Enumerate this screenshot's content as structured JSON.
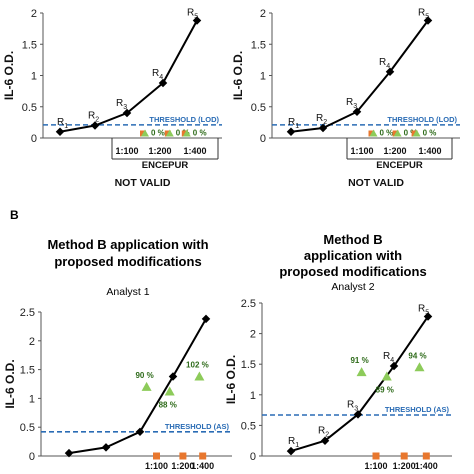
{
  "section_label_b": "B",
  "chart_data": [
    {
      "type": "line",
      "panel": "A-left",
      "ylabel": "IL-6 O.D.",
      "ylim": [
        0,
        2
      ],
      "yticks": [
        "0",
        "0.5",
        "1",
        "1.5",
        "2"
      ],
      "x": [
        1,
        2,
        3,
        4,
        5
      ],
      "values": [
        0.1,
        0.2,
        0.4,
        0.88,
        1.88
      ],
      "point_labels": [
        {
          "base": "R",
          "sub": "1"
        },
        {
          "base": "R",
          "sub": "2"
        },
        {
          "base": "R",
          "sub": "3"
        },
        {
          "base": "R",
          "sub": "4"
        },
        {
          "base": "R",
          "sub": "5"
        }
      ],
      "threshold": {
        "value": 0.21,
        "label": "THRESHOLD (LOD)"
      },
      "samples": [
        {
          "x": 3.5,
          "y": 0.04,
          "label": "0 %",
          "marker": "square-triangle"
        },
        {
          "x": 4.2,
          "y": 0.04,
          "label": "0 %",
          "marker": "square-triangle"
        },
        {
          "x": 4.7,
          "y": 0.04,
          "label": "0 %",
          "marker": "square-triangle"
        }
      ],
      "sample_labels": [
        "1:100",
        "1:200",
        "1:400"
      ],
      "group_label": "ENCEPUR",
      "footer": "NOT VALID"
    },
    {
      "type": "line",
      "panel": "A-right",
      "ylabel": "IL-6 O.D.",
      "ylim": [
        0,
        2
      ],
      "yticks": [
        "0",
        "0.5",
        "1",
        "1.5",
        "2"
      ],
      "x": [
        1,
        2,
        3,
        4,
        5
      ],
      "values": [
        0.1,
        0.16,
        0.42,
        1.06,
        1.88
      ],
      "point_labels": [
        {
          "base": "R",
          "sub": "1"
        },
        {
          "base": "R",
          "sub": "2"
        },
        {
          "base": "R",
          "sub": "3"
        },
        {
          "base": "R",
          "sub": "4"
        },
        {
          "base": "R",
          "sub": "5"
        }
      ],
      "threshold": {
        "value": 0.21,
        "label": "THRESHOLD (LOD)"
      },
      "samples": [
        {
          "x": 3.5,
          "y": 0.04,
          "label": "0 %",
          "marker": "square-triangle"
        },
        {
          "x": 4.2,
          "y": 0.04,
          "label": "0 %",
          "marker": "square-triangle"
        },
        {
          "x": 4.7,
          "y": 0.04,
          "label": "0 %",
          "marker": "square-triangle"
        }
      ],
      "sample_labels": [
        "1:100",
        "1:200",
        "1:400"
      ],
      "group_label": "ENCEPUR",
      "footer": "NOT VALID"
    },
    {
      "type": "line",
      "panel": "B-left",
      "title": "Method B application with proposed modifications",
      "subtitle": "Analyst 1",
      "ylabel": "IL-6 O.D.",
      "ylim": [
        0,
        2.5
      ],
      "yticks": [
        "0",
        "0.5",
        "1",
        "1.5",
        "2",
        "2.5"
      ],
      "x": [
        1,
        2,
        3,
        4,
        5
      ],
      "values": [
        0.05,
        0.15,
        0.42,
        1.38,
        2.38
      ],
      "point_labels": [],
      "threshold": {
        "value": 0.42,
        "label": "THRESHOLD (AS)"
      },
      "samples": [
        {
          "x": 3.2,
          "y": 1.2,
          "label": "90 %",
          "marker": "triangle"
        },
        {
          "x": 3.9,
          "y": 1.12,
          "label": "88 %",
          "marker": "triangle"
        },
        {
          "x": 4.8,
          "y": 1.38,
          "label": "102 %",
          "marker": "triangle"
        }
      ],
      "squares_x": [
        3.5,
        4.3,
        4.9
      ],
      "sample_labels": [
        "1:100",
        "1:200",
        "1:400"
      ]
    },
    {
      "type": "line",
      "panel": "B-right",
      "title": "Method B application with proposed modifications",
      "subtitle": "Analyst 2",
      "ylabel": "IL-6 O.D.",
      "ylim": [
        0,
        2.5
      ],
      "yticks": [
        "0",
        "0.5",
        "1",
        "1.5",
        "2",
        "2.5"
      ],
      "x": [
        1,
        2,
        3,
        4,
        5
      ],
      "values": [
        0.08,
        0.25,
        0.68,
        1.47,
        2.28
      ],
      "point_labels": [
        {
          "base": "R",
          "sub": "1"
        },
        {
          "base": "R",
          "sub": "2"
        },
        {
          "base": "R",
          "sub": "3"
        },
        {
          "base": "R",
          "sub": "4"
        },
        {
          "base": "R",
          "sub": "5"
        }
      ],
      "threshold": {
        "value": 0.67,
        "label": "THRESHOLD (AS)"
      },
      "samples": [
        {
          "x": 3.1,
          "y": 1.37,
          "label": "91 %",
          "marker": "triangle"
        },
        {
          "x": 3.8,
          "y": 1.3,
          "label": "89 %",
          "marker": "triangle"
        },
        {
          "x": 4.75,
          "y": 1.45,
          "label": "94 %",
          "marker": "triangle"
        }
      ],
      "squares_x": [
        3.5,
        4.3,
        4.95
      ],
      "sample_labels": [
        "1:100",
        "1:200",
        "1:400"
      ]
    }
  ],
  "colors": {
    "line": "#000000",
    "threshold": "#2a6cb5",
    "sample_square": "#e8772e",
    "sample_triangle": "#8dcb5a",
    "percent_text": "#2e6b1a"
  }
}
